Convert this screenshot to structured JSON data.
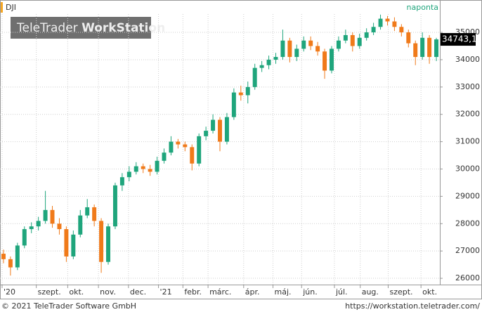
{
  "chart_data": {
    "type": "candlestick",
    "symbol": "DJI",
    "period": "naponta",
    "watermark": [
      "TeleTrader",
      "WorkStation"
    ],
    "footer_left": "© 2021 TeleTrader Software GmbH",
    "footer_right": "https://workstation.teletrader.com/",
    "up_color": "#1fa57c",
    "down_color": "#f07a1a",
    "open": [
      26900,
      26700,
      26400,
      27200,
      27800,
      27900,
      28100,
      28500,
      28000,
      27800,
      26800,
      27600,
      28300,
      28600,
      28100,
      26600,
      27900,
      29400,
      29700,
      29900,
      30100,
      30000,
      29900,
      30300,
      30600,
      31000,
      30900,
      30800,
      30200,
      31200,
      31400,
      31800,
      31000,
      31900,
      32800,
      32700,
      33000,
      33700,
      33800,
      34000,
      34100,
      34700,
      34100,
      34400,
      34700,
      34500,
      34300,
      33600,
      34400,
      34700,
      34900,
      34500,
      34800,
      35000,
      35200,
      35500,
      35400,
      35200,
      35000,
      34600,
      34100,
      34800,
      34100
    ],
    "high": [
      27050,
      26800,
      27300,
      27900,
      28050,
      28250,
      29200,
      28650,
      28200,
      27900,
      27750,
      28500,
      28900,
      28700,
      28200,
      28000,
      29500,
      29850,
      30100,
      30250,
      30200,
      30150,
      30450,
      30750,
      31200,
      31100,
      31000,
      30900,
      31300,
      31550,
      32000,
      31900,
      32050,
      32950,
      33050,
      33200,
      33850,
      33950,
      34150,
      34250,
      35100,
      34800,
      34550,
      34850,
      34850,
      34650,
      34400,
      34500,
      34850,
      35100,
      35000,
      34950,
      35150,
      35350,
      35650,
      35600,
      35550,
      35300,
      35100,
      34700,
      35000,
      34900,
      34800
    ],
    "low": [
      26550,
      26100,
      26300,
      27100,
      27650,
      27750,
      28000,
      27850,
      27600,
      26600,
      26700,
      27500,
      28200,
      27900,
      26200,
      26500,
      27800,
      29200,
      29550,
      29800,
      29850,
      29750,
      29800,
      30200,
      30500,
      30750,
      30650,
      29950,
      30100,
      31050,
      31300,
      30650,
      30900,
      31800,
      32500,
      32400,
      32900,
      33550,
      33650,
      33850,
      34000,
      33900,
      33950,
      34300,
      34350,
      34150,
      33300,
      33500,
      34300,
      34600,
      34300,
      34400,
      34700,
      34900,
      35100,
      35250,
      35050,
      34850,
      34450,
      33800,
      34000,
      33850,
      33950
    ],
    "close": [
      26700,
      26400,
      27200,
      27800,
      27900,
      28100,
      28500,
      28000,
      27800,
      26800,
      27600,
      28300,
      28600,
      28100,
      26600,
      27900,
      29400,
      29700,
      29900,
      30100,
      30000,
      29900,
      30300,
      30600,
      31000,
      30900,
      30800,
      30200,
      31200,
      31400,
      31800,
      31000,
      31900,
      32800,
      32700,
      33000,
      33700,
      33800,
      34000,
      34100,
      34700,
      34100,
      34400,
      34700,
      34500,
      34300,
      33600,
      34400,
      34700,
      34900,
      34500,
      34800,
      35000,
      35200,
      35500,
      35400,
      35200,
      35000,
      34600,
      34100,
      34800,
      34100,
      34743.1
    ],
    "last_value": {
      "value": 34743.1,
      "label": "34743,1"
    },
    "xlim": [
      0,
      63
    ],
    "xticks": [
      {
        "value": 0.3,
        "label": "'20"
      },
      {
        "value": 5.2,
        "label": "szept."
      },
      {
        "value": 9.7,
        "label": "okt."
      },
      {
        "value": 14.1,
        "label": "nov."
      },
      {
        "value": 18.4,
        "label": "dec."
      },
      {
        "value": 22.7,
        "label": "'21"
      },
      {
        "value": 26.2,
        "label": "febr."
      },
      {
        "value": 29.8,
        "label": "márc."
      },
      {
        "value": 34.9,
        "label": "ápr."
      },
      {
        "value": 39.1,
        "label": "máj."
      },
      {
        "value": 43.2,
        "label": "jún."
      },
      {
        "value": 47.9,
        "label": "júl."
      },
      {
        "value": 51.6,
        "label": "aug."
      },
      {
        "value": 55.6,
        "label": "szept."
      },
      {
        "value": 60.3,
        "label": "okt."
      }
    ],
    "ylim": [
      25770,
      35670
    ],
    "yticks": [
      26000,
      27000,
      28000,
      29000,
      30000,
      31000,
      32000,
      33000,
      34000,
      35000
    ],
    "grid": true
  }
}
